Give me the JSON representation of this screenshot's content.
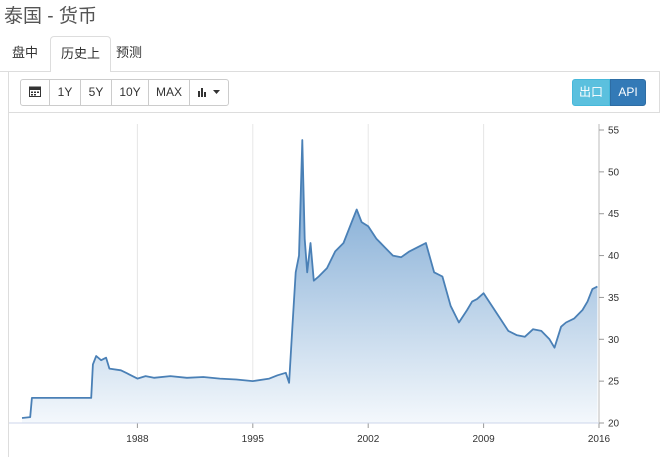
{
  "page": {
    "title": "泰国 - 货币"
  },
  "tabs": [
    {
      "label": "盘中",
      "active": false
    },
    {
      "label": "历史上",
      "active": true
    },
    {
      "label": "预测",
      "active": false
    }
  ],
  "toolbar": {
    "calendar_icon": "calendar-icon",
    "range_buttons": [
      "1Y",
      "5Y",
      "10Y",
      "MAX"
    ],
    "chart_type_icon": "bar-chart-icon",
    "dropdown_icon": "caret-down-icon",
    "export_label": "出口",
    "api_label": "API"
  },
  "colors": {
    "line": "#4a80b6",
    "area_top": "#6a9ccd",
    "area_bottom": "#f4f8fc",
    "export_btn": "#5bc0de",
    "api_btn": "#337ab7"
  },
  "chart_data": {
    "type": "area",
    "x_ticks": [
      "1988",
      "1995",
      "2002",
      "2009",
      "2016"
    ],
    "y_ticks": [
      20,
      25,
      30,
      35,
      40,
      45,
      50,
      55
    ],
    "xlim": [
      1981,
      2016
    ],
    "ylim": [
      20,
      55
    ],
    "y_axis_position": "right",
    "grid": "vertical",
    "series": [
      {
        "points": [
          [
            1981.0,
            20.6
          ],
          [
            1981.5,
            20.7
          ],
          [
            1981.6,
            23.0
          ],
          [
            1982.5,
            23.0
          ],
          [
            1984.0,
            23.0
          ],
          [
            1985.2,
            23.0
          ],
          [
            1985.3,
            27.0
          ],
          [
            1985.5,
            28.0
          ],
          [
            1985.8,
            27.5
          ],
          [
            1986.1,
            27.8
          ],
          [
            1986.3,
            26.5
          ],
          [
            1987.0,
            26.3
          ],
          [
            1987.5,
            25.8
          ],
          [
            1988.0,
            25.3
          ],
          [
            1988.5,
            25.6
          ],
          [
            1989.0,
            25.4
          ],
          [
            1990.0,
            25.6
          ],
          [
            1991.0,
            25.4
          ],
          [
            1992.0,
            25.5
          ],
          [
            1993.0,
            25.3
          ],
          [
            1994.0,
            25.2
          ],
          [
            1995.0,
            25.0
          ],
          [
            1996.0,
            25.3
          ],
          [
            1996.5,
            25.7
          ],
          [
            1997.0,
            26.0
          ],
          [
            1997.2,
            24.8
          ],
          [
            1997.4,
            31.5
          ],
          [
            1997.6,
            38.0
          ],
          [
            1997.8,
            40.0
          ],
          [
            1998.0,
            53.8
          ],
          [
            1998.15,
            42.0
          ],
          [
            1998.3,
            38.0
          ],
          [
            1998.5,
            41.5
          ],
          [
            1998.7,
            37.0
          ],
          [
            1999.0,
            37.5
          ],
          [
            1999.5,
            38.5
          ],
          [
            2000.0,
            40.5
          ],
          [
            2000.5,
            41.5
          ],
          [
            2001.0,
            44.0
          ],
          [
            2001.3,
            45.5
          ],
          [
            2001.6,
            44.0
          ],
          [
            2002.0,
            43.5
          ],
          [
            2002.5,
            42.0
          ],
          [
            2003.0,
            41.0
          ],
          [
            2003.5,
            40.0
          ],
          [
            2004.0,
            39.8
          ],
          [
            2004.5,
            40.5
          ],
          [
            2005.0,
            41.0
          ],
          [
            2005.5,
            41.5
          ],
          [
            2006.0,
            38.0
          ],
          [
            2006.5,
            37.5
          ],
          [
            2007.0,
            34.0
          ],
          [
            2007.5,
            32.0
          ],
          [
            2008.0,
            33.5
          ],
          [
            2008.3,
            34.5
          ],
          [
            2008.6,
            34.8
          ],
          [
            2009.0,
            35.5
          ],
          [
            2009.5,
            34.0
          ],
          [
            2010.0,
            32.5
          ],
          [
            2010.5,
            31.0
          ],
          [
            2011.0,
            30.5
          ],
          [
            2011.5,
            30.3
          ],
          [
            2012.0,
            31.2
          ],
          [
            2012.5,
            31.0
          ],
          [
            2013.0,
            30.0
          ],
          [
            2013.3,
            29.0
          ],
          [
            2013.7,
            31.5
          ],
          [
            2014.0,
            32.0
          ],
          [
            2014.5,
            32.5
          ],
          [
            2015.0,
            33.5
          ],
          [
            2015.3,
            34.5
          ],
          [
            2015.6,
            36.0
          ],
          [
            2015.9,
            36.3
          ]
        ]
      }
    ]
  }
}
